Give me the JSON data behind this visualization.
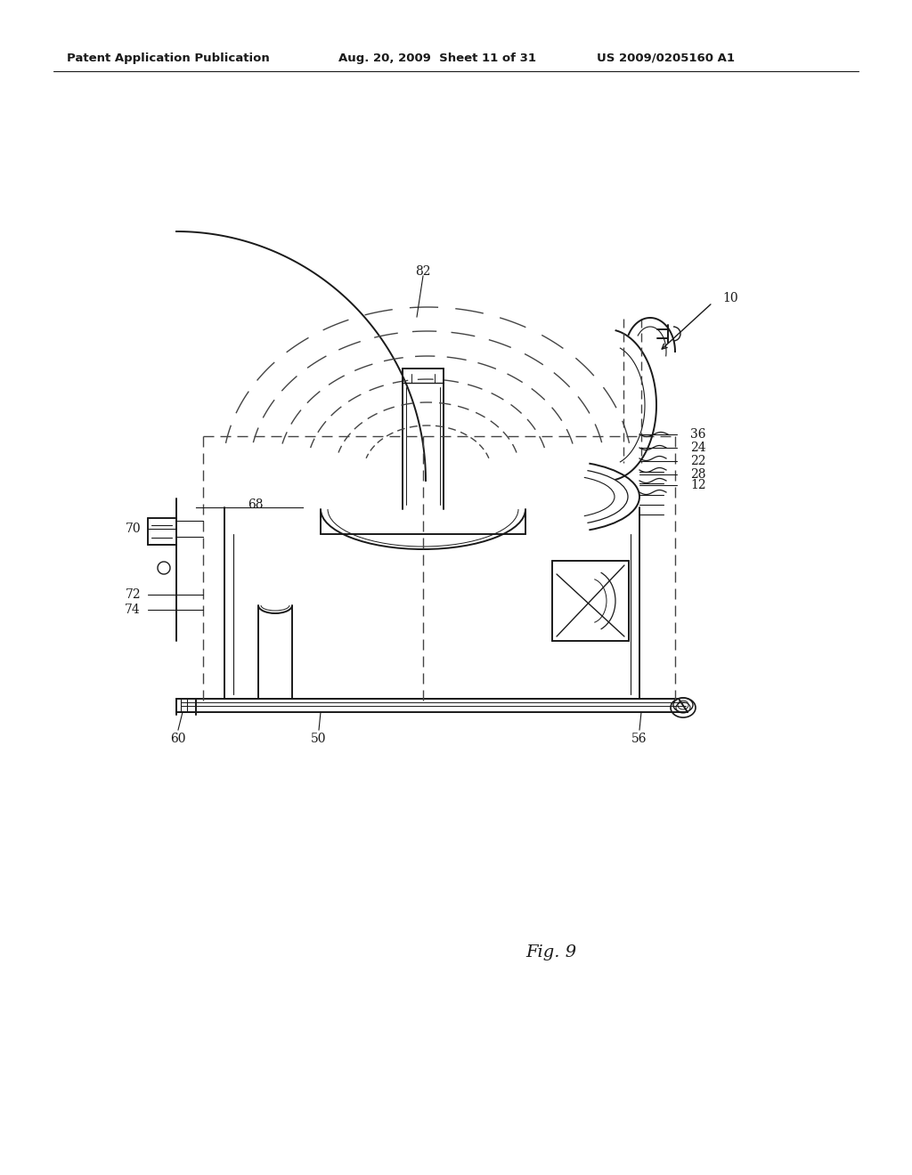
{
  "bg_color": "#ffffff",
  "line_color": "#1a1a1a",
  "dash_color": "#444444",
  "header_left": "Patent Application Publication",
  "header_mid": "Aug. 20, 2009  Sheet 11 of 31",
  "header_right": "US 2009/0205160 A1",
  "fig_label": "Fig. 9",
  "lw_main": 1.4,
  "lw_thin": 0.9,
  "lw_dash": 1.0
}
